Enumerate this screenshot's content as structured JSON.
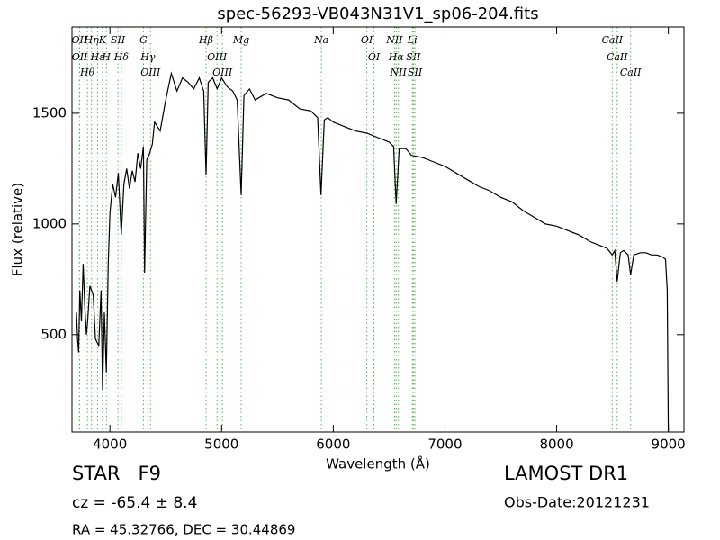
{
  "chart_data": {
    "type": "line",
    "title": "spec-56293-VB043N31V1_sp06-204.fits",
    "x_label": "Wavelength (Å)",
    "y_label": "Flux (relative)",
    "xlim": [
      3660,
      9140
    ],
    "ylim": [
      60,
      1890
    ],
    "xticks": [
      4000,
      5000,
      6000,
      7000,
      8000,
      9000
    ],
    "yticks": [
      500,
      1000,
      1500
    ],
    "color": "#000000",
    "line_color": "#44bb44",
    "x": [
      3700,
      3710,
      3720,
      3730,
      3745,
      3760,
      3775,
      3790,
      3800,
      3820,
      3850,
      3870,
      3900,
      3920,
      3934,
      3950,
      3968,
      3985,
      4000,
      4025,
      4050,
      4075,
      4102,
      4125,
      4150,
      4175,
      4200,
      4225,
      4250,
      4275,
      4300,
      4310,
      4330,
      4350,
      4380,
      4400,
      4450,
      4500,
      4550,
      4600,
      4650,
      4700,
      4750,
      4800,
      4840,
      4861,
      4880,
      4920,
      4960,
      5000,
      5050,
      5100,
      5140,
      5175,
      5200,
      5250,
      5300,
      5400,
      5500,
      5600,
      5700,
      5800,
      5860,
      5890,
      5920,
      5950,
      6000,
      6100,
      6200,
      6300,
      6400,
      6500,
      6540,
      6563,
      6590,
      6650,
      6700,
      6800,
      6900,
      7000,
      7100,
      7200,
      7300,
      7400,
      7500,
      7600,
      7700,
      7800,
      7900,
      8000,
      8100,
      8200,
      8300,
      8400,
      8450,
      8498,
      8520,
      8542,
      8570,
      8600,
      8640,
      8662,
      8690,
      8750,
      8800,
      8850,
      8900,
      8950,
      8975,
      8990,
      9000
    ],
    "values": [
      600,
      480,
      420,
      700,
      560,
      820,
      620,
      500,
      560,
      720,
      680,
      480,
      450,
      700,
      250,
      600,
      330,
      820,
      1050,
      1180,
      1120,
      1230,
      950,
      1180,
      1250,
      1160,
      1240,
      1190,
      1320,
      1250,
      1350,
      780,
      1290,
      1310,
      1360,
      1460,
      1420,
      1560,
      1680,
      1600,
      1660,
      1640,
      1610,
      1660,
      1600,
      1220,
      1640,
      1660,
      1610,
      1660,
      1620,
      1600,
      1560,
      1130,
      1580,
      1610,
      1560,
      1590,
      1570,
      1560,
      1520,
      1510,
      1480,
      1130,
      1470,
      1480,
      1460,
      1440,
      1420,
      1410,
      1390,
      1370,
      1350,
      1090,
      1340,
      1340,
      1310,
      1300,
      1280,
      1260,
      1230,
      1200,
      1170,
      1150,
      1120,
      1100,
      1060,
      1030,
      1000,
      990,
      970,
      950,
      920,
      900,
      890,
      860,
      880,
      740,
      870,
      880,
      860,
      770,
      860,
      870,
      870,
      860,
      860,
      850,
      840,
      700,
      60
    ],
    "lines": [
      {
        "label": "OII",
        "x": 3727
      },
      {
        "label": "OII",
        "x": 3729
      },
      {
        "label": "Hθ",
        "x": 3798
      },
      {
        "label": "Hη",
        "x": 3835
      },
      {
        "label": "Hε",
        "x": 3889
      },
      {
        "label": "K",
        "x": 3934
      },
      {
        "label": "H",
        "x": 3968
      },
      {
        "label": "SII",
        "x": 4072
      },
      {
        "label": "Hδ",
        "x": 4102
      },
      {
        "label": "G",
        "x": 4300
      },
      {
        "label": "Hγ",
        "x": 4340
      },
      {
        "label": "OIII",
        "x": 4363
      },
      {
        "label": "Hβ",
        "x": 4861
      },
      {
        "label": "OIII",
        "x": 4959
      },
      {
        "label": "OIII",
        "x": 5007
      },
      {
        "label": "Mg",
        "x": 5175
      },
      {
        "label": "Na",
        "x": 5893
      },
      {
        "label": "OI",
        "x": 6300
      },
      {
        "label": "OI",
        "x": 6364
      },
      {
        "label": "NII",
        "x": 6548
      },
      {
        "label": "Hα",
        "x": 6563
      },
      {
        "label": "NII",
        "x": 6583
      },
      {
        "label": "Li",
        "x": 6708
      },
      {
        "label": "SII",
        "x": 6717
      },
      {
        "label": "SII",
        "x": 6731
      },
      {
        "label": "CaII",
        "x": 8498
      },
      {
        "label": "CaII",
        "x": 8542
      },
      {
        "label": "CaII",
        "x": 8662
      }
    ],
    "object_class": "STAR   F9",
    "redshift": "cz = -65.4 ± 8.4",
    "coordinates": "RA = 45.32766, DEC = 30.44869",
    "survey": "LAMOST DR1",
    "obs_date": "Obs-Date:20121231"
  }
}
